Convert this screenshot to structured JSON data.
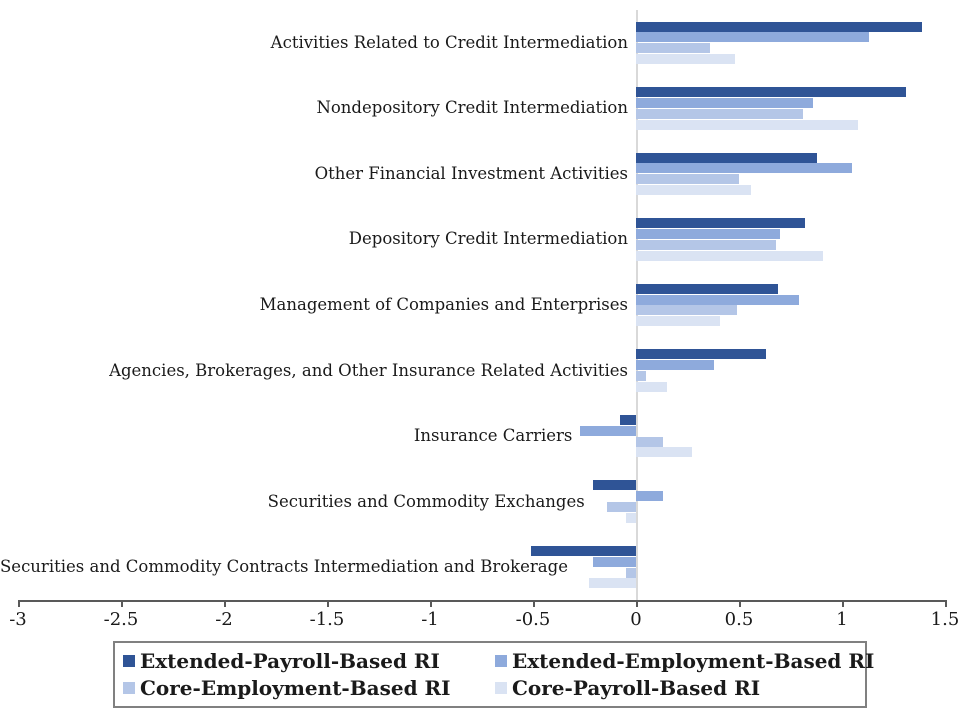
{
  "chart_data": {
    "type": "bar",
    "orientation": "horizontal",
    "title": "",
    "xlabel": "",
    "ylabel": "",
    "xlim": [
      -3,
      1.5
    ],
    "x_ticks": [
      {
        "value": -3,
        "label": "-3"
      },
      {
        "value": -2.5,
        "label": "-2.5"
      },
      {
        "value": -2,
        "label": "-2"
      },
      {
        "value": -1.5,
        "label": "-1.5"
      },
      {
        "value": -1,
        "label": "-1"
      },
      {
        "value": -0.5,
        "label": "-0.5"
      },
      {
        "value": 0,
        "label": "0"
      },
      {
        "value": 0.5,
        "label": "0.5"
      },
      {
        "value": 1,
        "label": "1"
      },
      {
        "value": 1.5,
        "label": "1.5"
      }
    ],
    "grid": "zero-gridline-only",
    "legend_position": "bottom",
    "categories": [
      "Activities Related to Credit Intermediation",
      "Nondepository Credit Intermediation",
      "Other Financial Investment Activities",
      "Depository Credit Intermediation",
      "Management of Companies and Enterprises",
      "Agencies, Brokerages, and Other Insurance Related Activities",
      "Insurance Carriers",
      "Securities and Commodity Exchanges",
      "Securities and Commodity Contracts Intermediation and Brokerage"
    ],
    "series": [
      {
        "name": "Extended-Payroll-Based RI",
        "color": "#2F5496",
        "values": [
          1.39,
          1.31,
          0.88,
          0.82,
          0.69,
          0.63,
          -0.08,
          -0.21,
          -0.51
        ]
      },
      {
        "name": "Extended-Employment-Based RI",
        "color": "#8EAADC",
        "values": [
          1.13,
          0.86,
          1.05,
          0.7,
          0.79,
          0.38,
          -0.27,
          0.13,
          -0.21
        ]
      },
      {
        "name": "Core-Employment-Based RI",
        "color": "#B4C6E7",
        "values": [
          0.36,
          0.81,
          0.5,
          0.68,
          0.49,
          0.05,
          0.13,
          -0.14,
          -0.05
        ]
      },
      {
        "name": "Core-Payroll-Based RI",
        "color": "#DAE3F3",
        "values": [
          0.48,
          1.08,
          0.56,
          0.91,
          0.41,
          0.15,
          0.27,
          -0.05,
          -0.23
        ]
      }
    ],
    "colors": {
      "axis": "#595959",
      "zero_line": "#D9D9D9",
      "text": "#1A1A1A",
      "legend_border": "#808080"
    }
  }
}
